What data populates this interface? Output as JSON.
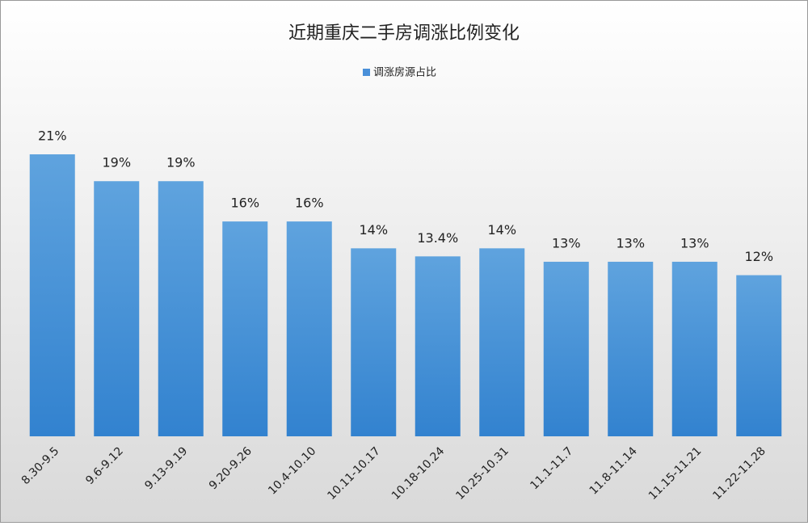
{
  "chart_data": {
    "type": "bar",
    "title": "近期重庆二手房调涨比例变化",
    "categories": [
      "8.30-9.5",
      "9.6-9.12",
      "9.13-9.19",
      "9.20-9.26",
      "10.4-10.10",
      "10.11-10.17",
      "10.18-10.24",
      "10.25-10.31",
      "11.1-11.7",
      "11.8-11.14",
      "11.15-11.21",
      "11.22-11.28"
    ],
    "series": [
      {
        "name": "调涨房源占比",
        "color": "#4a90d9",
        "values": [
          21,
          19,
          19,
          16,
          16,
          14,
          13.4,
          14,
          13,
          13,
          13,
          12
        ],
        "value_labels": [
          "21%",
          "19%",
          "19%",
          "16%",
          "16%",
          "14%",
          "13.4%",
          "14%",
          "13%",
          "13%",
          "13%",
          "12%"
        ]
      }
    ],
    "legend": "top"
  }
}
